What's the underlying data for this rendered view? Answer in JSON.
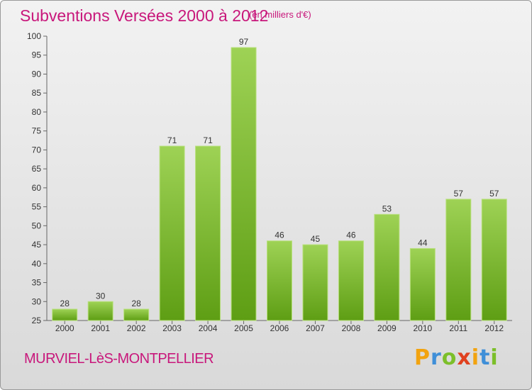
{
  "header": {
    "title": "Subventions Versées 2000 à 2012",
    "subtitle": "(en milliers d'€)"
  },
  "footer": {
    "commune": "MURVIEL-LèS-MONTPELLIER",
    "brand": "Proxiti",
    "brand_letters": [
      {
        "char": "P",
        "color": "#f2a30f"
      },
      {
        "char": "r",
        "color": "#3f8fd8"
      },
      {
        "char": "o",
        "color": "#7cbf2a"
      },
      {
        "char": "x",
        "color": "#e0411f"
      },
      {
        "char": "i",
        "color": "#f2a30f"
      },
      {
        "char": "t",
        "color": "#3f8fd8"
      },
      {
        "char": "i",
        "color": "#7cbf2a"
      }
    ]
  },
  "colors": {
    "accent": "#c8177b",
    "bar_top": "#9ed255",
    "bar_bottom": "#5e9e14"
  },
  "chart_data": {
    "type": "bar",
    "title": "Subventions Versées 2000 à 2012",
    "subtitle": "(en milliers d'€)",
    "xlabel": "",
    "ylabel": "",
    "categories": [
      "2000",
      "2001",
      "2002",
      "2003",
      "2004",
      "2005",
      "2006",
      "2007",
      "2008",
      "2009",
      "2010",
      "2011",
      "2012"
    ],
    "values": [
      28,
      30,
      28,
      71,
      71,
      97,
      46,
      45,
      46,
      53,
      44,
      57,
      57
    ],
    "ylim": [
      25,
      100
    ],
    "yticks": [
      25,
      30,
      35,
      40,
      45,
      50,
      55,
      60,
      65,
      70,
      75,
      80,
      85,
      90,
      95,
      100
    ],
    "grid": false,
    "legend": "none"
  }
}
